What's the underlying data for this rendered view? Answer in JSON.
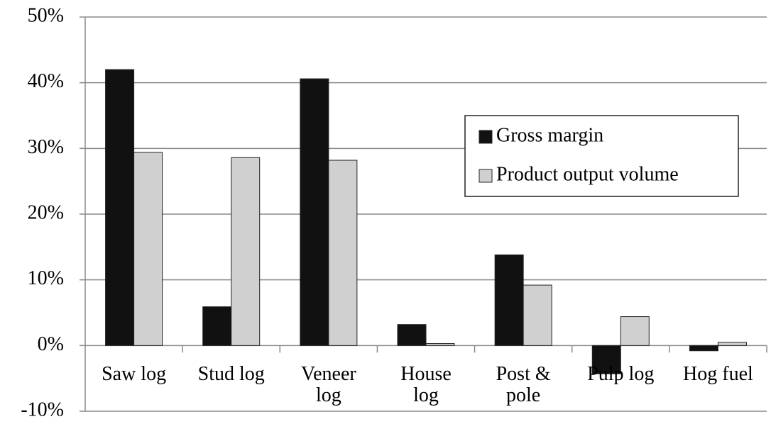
{
  "chart_data": {
    "type": "bar",
    "categories": [
      "Saw log",
      "Stud log",
      "Veneer\nlog",
      "House\nlog",
      "Post &\npole",
      "Pulp log",
      "Hog fuel"
    ],
    "series": [
      {
        "name": "Gross margin",
        "color": "#111111",
        "values": [
          42.0,
          5.9,
          40.6,
          3.2,
          13.8,
          -4.3,
          -0.8
        ]
      },
      {
        "name": "Product output volume",
        "color": "#d0d0d0",
        "values": [
          29.4,
          28.6,
          28.2,
          0.3,
          9.2,
          4.4,
          0.5
        ]
      }
    ],
    "ylim": [
      -10,
      50
    ],
    "yticks": [
      {
        "value": -10,
        "label": "-10%"
      },
      {
        "value": 0,
        "label": "0%"
      },
      {
        "value": 10,
        "label": "10%"
      },
      {
        "value": 20,
        "label": "20%"
      },
      {
        "value": 30,
        "label": "30%"
      },
      {
        "value": 40,
        "label": "40%"
      },
      {
        "value": 50,
        "label": "50%"
      }
    ],
    "grid": true,
    "legend": "upper right"
  }
}
